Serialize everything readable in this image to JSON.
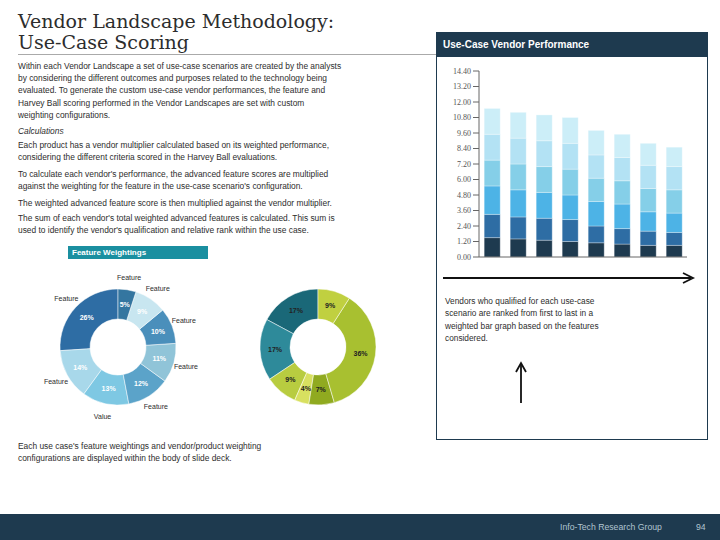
{
  "title": "Vendor Landscape Methodology:\nUse-Case Scoring",
  "annotations": [
    "Within each Vendor Landscape a set of use-case scenarios are created by the analysts\nby considering the different outcomes and purposes related to the technology being\nevaluated. To generate the custom use-case vendor performances, the feature and\nHarvey Ball scoring performed in the Vendor Landscapes are set with custom\nweighting configurations.",
    "Calculations",
    "Each product has a vendor multiplier calculated based on its weighted performance,\nconsidering the different criteria scored in the Harvey Ball evaluations.",
    "To calculate each vendor's performance, the advanced feature scores are multiplied\nagainst the weighting for the feature in the use-case scenario's configuration.",
    "The weighted advanced feature score is then multiplied against the vendor multiplier.",
    "The sum of each vendor's total weighted advanced features is calculated. This sum is\nused to identify the vendor's qualification and relative rank within the use case.",
    "Each use case's feature weightings and vendor/product weighting\nconfigurations are displayed within the body of slide deck.",
    "Info-Tech Research Group",
    "94"
  ],
  "chart_data": [
    {
      "type": "bar",
      "title": "Use-Case Vendor Performance",
      "stacked": true,
      "grid": false,
      "tick_labels": "y",
      "categories": [
        null,
        null,
        null,
        null,
        null,
        null,
        null,
        null
      ],
      "series": [
        {
          "color": "#1e3a4f",
          "values": [
            1.5,
            1.4,
            1.3,
            1.2,
            1.1,
            1.0,
            0.9,
            0.9
          ]
        },
        {
          "color": "#2e6da4",
          "values": [
            1.8,
            1.7,
            1.7,
            1.7,
            1.3,
            1.2,
            1.1,
            1.0
          ]
        },
        {
          "color": "#4db3e6",
          "values": [
            2.2,
            2.1,
            2.0,
            1.9,
            1.9,
            1.9,
            1.5,
            1.5
          ]
        },
        {
          "color": "#85cfe8",
          "values": [
            2.0,
            2.0,
            2.0,
            2.0,
            1.8,
            1.8,
            1.8,
            1.8
          ]
        },
        {
          "color": "#b3e2f4",
          "values": [
            2.0,
            2.0,
            2.0,
            2.0,
            1.8,
            1.8,
            1.8,
            1.8
          ]
        },
        {
          "color": "#cceef8",
          "values": [
            2.0,
            2.0,
            2.0,
            2.0,
            1.9,
            1.8,
            1.7,
            1.5
          ]
        }
      ],
      "ylim": [
        0,
        14.4
      ],
      "yticks": [
        {
          "value": 0,
          "label": "0.00"
        },
        {
          "value": 1.2,
          "label": "1.20"
        },
        {
          "value": 2.4,
          "label": "2.40"
        },
        {
          "value": 3.6,
          "label": "3.60"
        },
        {
          "value": 4.8,
          "label": "4.80"
        },
        {
          "value": 6,
          "label": "6.00"
        },
        {
          "value": 7.2,
          "label": "7.20"
        },
        {
          "value": 8.4,
          "label": "8.40"
        },
        {
          "value": 9.6,
          "label": "9.60"
        },
        {
          "value": 10.8,
          "label": "10.80"
        },
        {
          "value": 12,
          "label": "12.00"
        },
        {
          "value": 13.2,
          "label": "13.20"
        },
        {
          "value": 14.4,
          "label": "14.40"
        }
      ],
      "annotations": [
        "Vendors who qualified for each use-case\nscenario are ranked from first to last in a\nweighted bar graph based on the features\nconsidered."
      ]
    },
    {
      "type": "pie",
      "title": "Feature Weightings",
      "data_labels": true,
      "categories": [
        "Feature",
        "Feature",
        "Value",
        "Feature",
        "Feature",
        "Feature",
        "Feature",
        "Feature"
      ],
      "values": [
        26,
        14,
        13,
        12,
        11,
        10,
        9,
        5
      ],
      "value_labels": [
        "26%",
        "14%",
        "13%",
        "12%",
        "11%",
        "10%",
        "9%",
        "5%"
      ],
      "colors": [
        "#2e6da4",
        "#a8d8ea",
        "#7ec8e3",
        "#5ba3c9",
        "#90c4d8",
        "#4a8fbb",
        "#c8e6f0",
        "#3476a0"
      ]
    },
    {
      "type": "pie",
      "data_labels": true,
      "values": [
        17,
        17,
        9,
        4,
        7,
        36,
        9
      ],
      "value_labels": [
        "17%",
        "17%",
        "9%",
        "4%",
        "7%",
        "36%",
        "9%"
      ],
      "colors": [
        "#1a6878",
        "#2e8a9a",
        "#b8cc40",
        "#d8e060",
        "#90aa20",
        "#a8c030",
        "#c0d040"
      ]
    }
  ]
}
